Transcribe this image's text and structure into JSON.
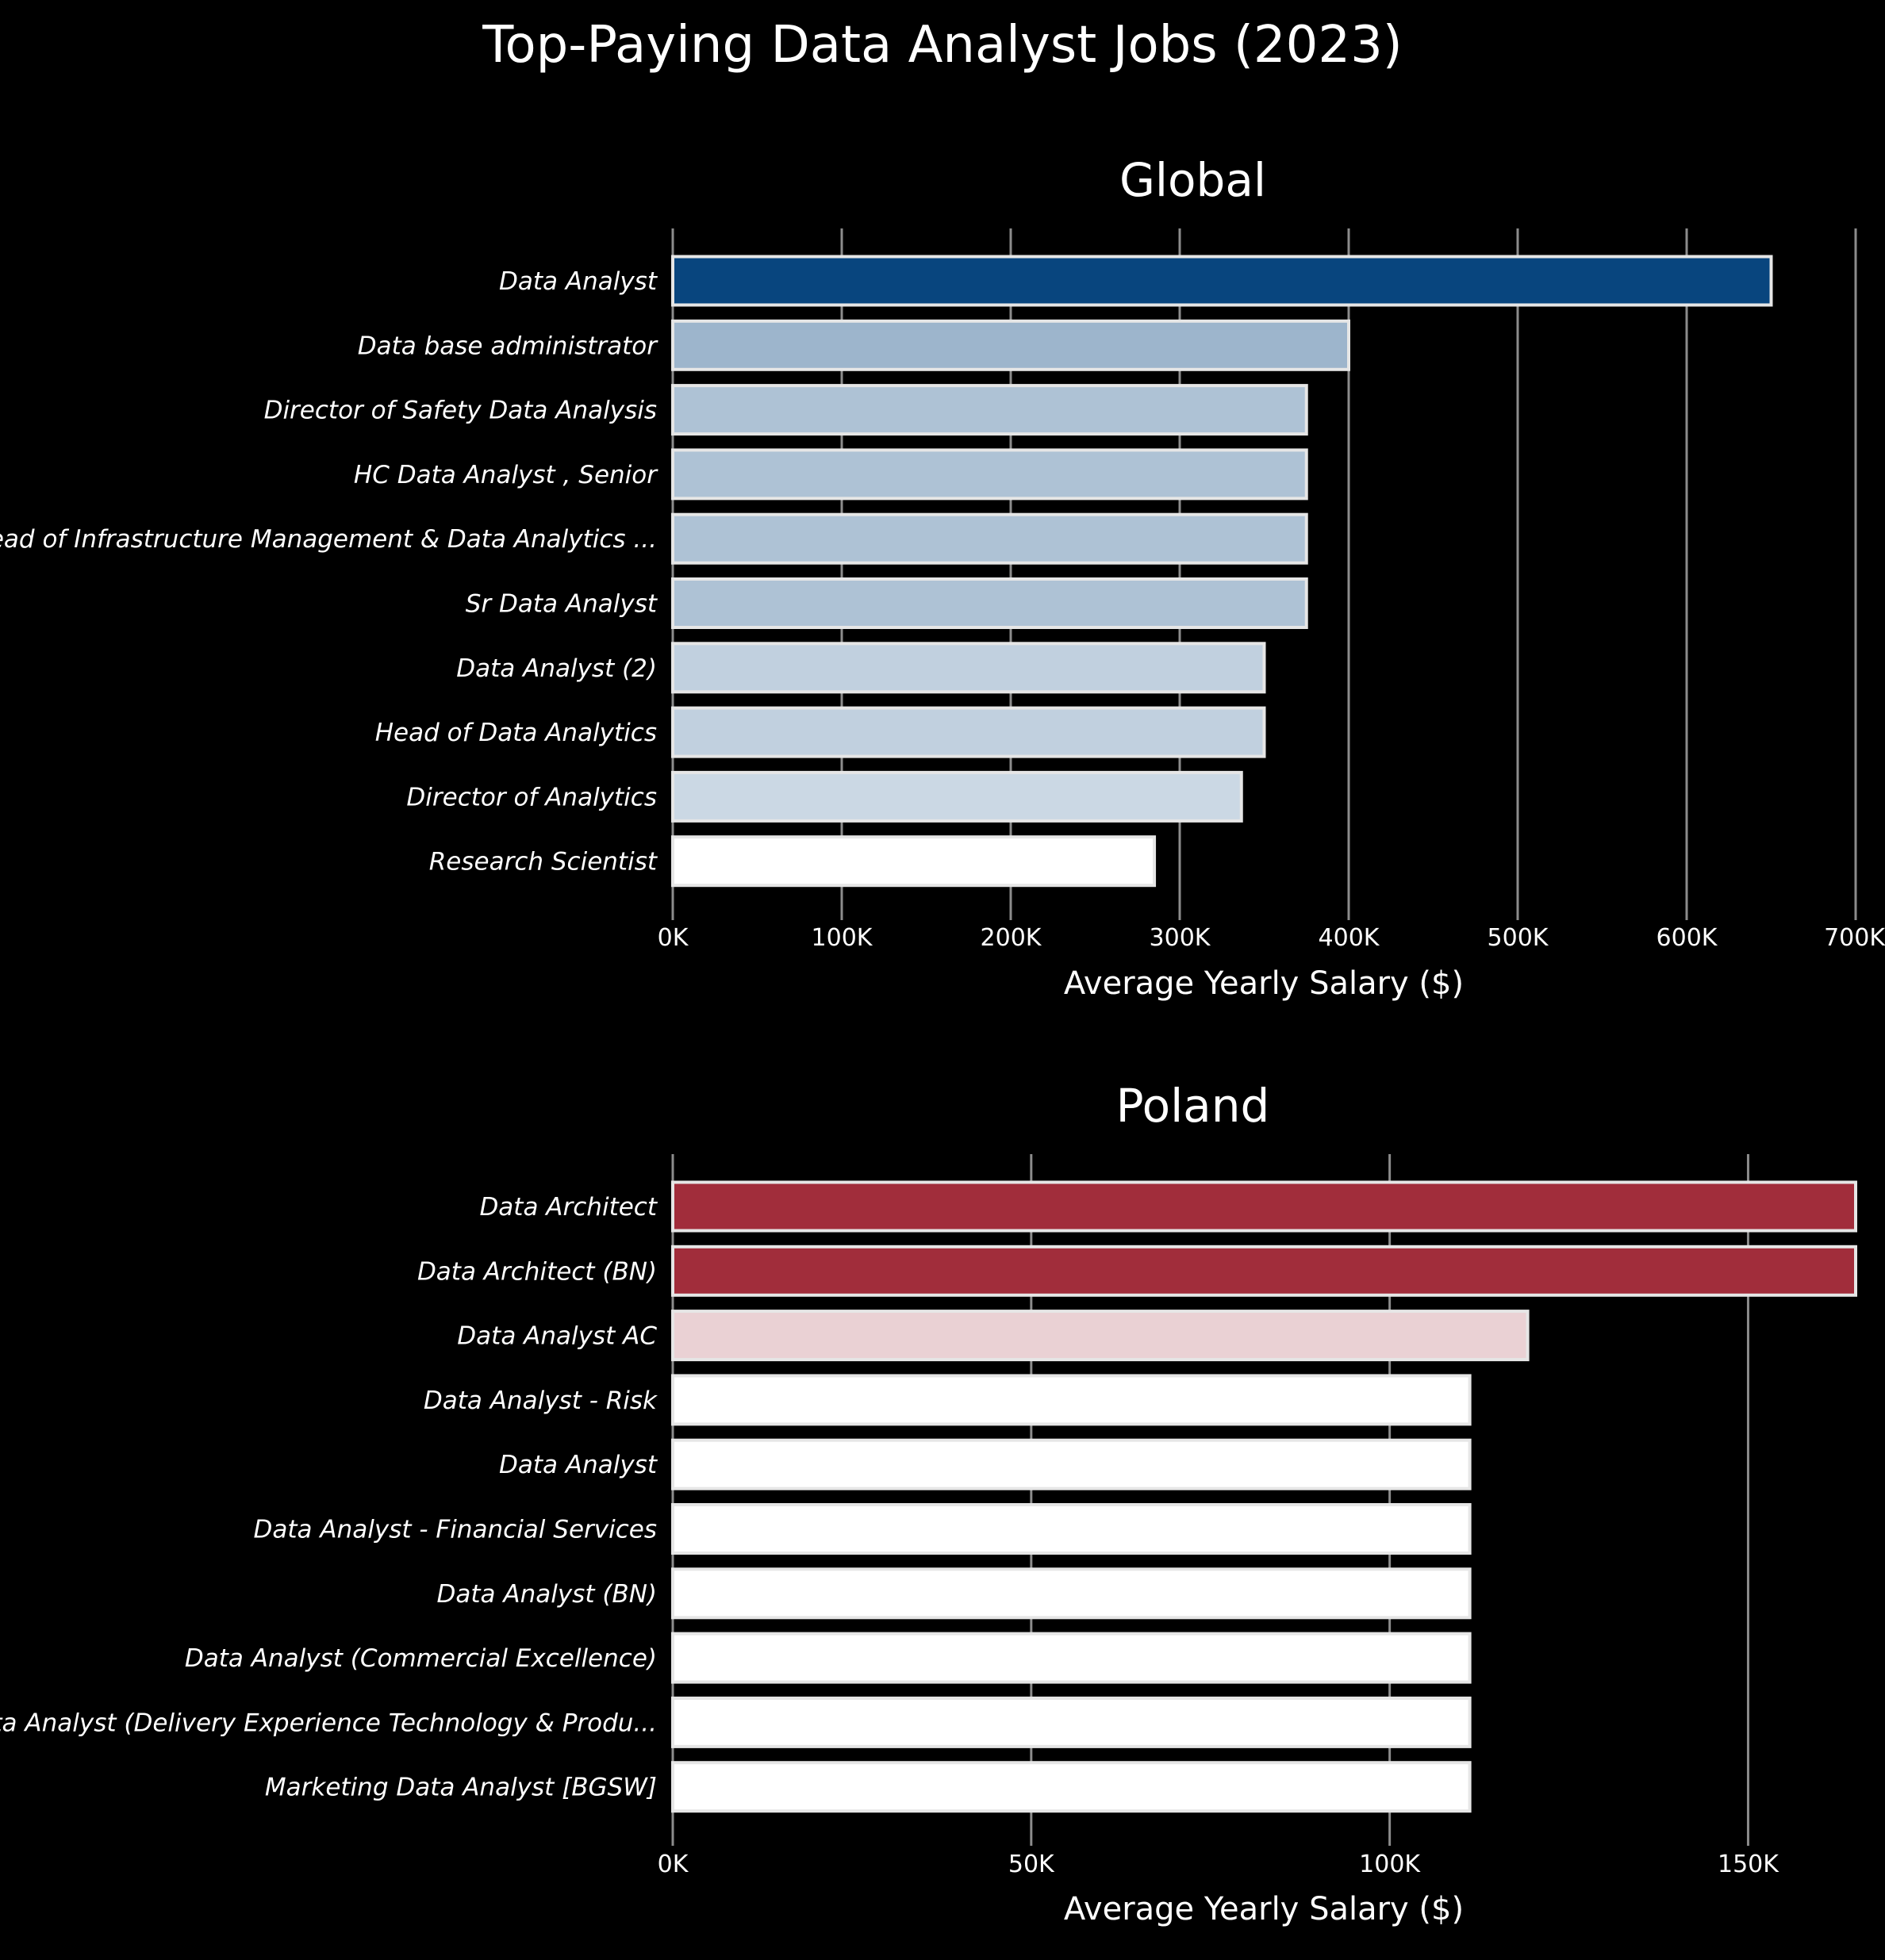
{
  "title": "Top-Paying Data Analyst Jobs (2023)",
  "chart_data": [
    {
      "type": "bar",
      "orientation": "horizontal",
      "title": "Global",
      "xlabel": "Average Yearly Salary ($)",
      "ylabel": "",
      "xlim": [
        0,
        700000
      ],
      "xticks": [
        0,
        100000,
        200000,
        300000,
        400000,
        500000,
        600000,
        700000
      ],
      "xtick_labels": [
        "0K",
        "100K",
        "200K",
        "300K",
        "400K",
        "500K",
        "600K",
        "700K"
      ],
      "grid": "vertical",
      "colormap": "Blues",
      "color_low": "#ffffff",
      "color_high": "#08457e",
      "categories": [
        "Data Analyst",
        "Data base administrator",
        "Director of Safety Data Analysis",
        "HC Data Analyst , Senior",
        "Head of Infrastructure Management & Data Analytics ...",
        "Sr Data Analyst",
        "Data Analyst (2)",
        "Head of Data Analytics",
        "Director of Analytics",
        "Research Scientist"
      ],
      "values": [
        650000,
        400000,
        375000,
        375000,
        375000,
        375000,
        350000,
        350000,
        336500,
        285000
      ]
    },
    {
      "type": "bar",
      "orientation": "horizontal",
      "title": "Poland",
      "xlabel": "Average Yearly Salary ($)",
      "ylabel": "",
      "xlim": [
        0,
        165000
      ],
      "xticks": [
        0,
        50000,
        100000,
        150000
      ],
      "xtick_labels": [
        "0K",
        "50K",
        "100K",
        "150K"
      ],
      "grid": "vertical",
      "colormap": "Reds",
      "color_low": "#ffffff",
      "color_high": "#a12d3b",
      "categories": [
        "Data Architect",
        "Data Architect (BN)",
        "Data Analyst AC",
        "Data Analyst - Risk",
        "Data Analyst",
        "Data Analyst - Financial Services",
        "Data Analyst (BN)",
        "Data Analyst (Commercial Excellence)",
        "Data Analyst (Delivery Experience Technology & Produ...",
        "Marketing Data Analyst [BGSW]"
      ],
      "values": [
        165000,
        165000,
        119250,
        111175,
        111175,
        111175,
        111175,
        111175,
        111175,
        111175
      ]
    }
  ]
}
